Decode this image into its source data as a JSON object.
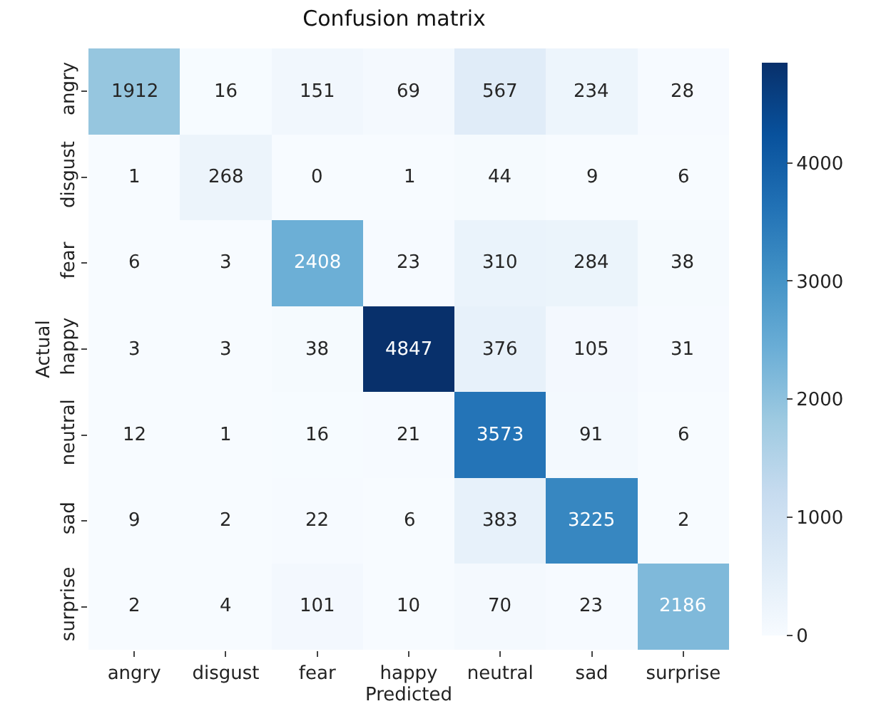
{
  "chart_data": {
    "type": "heatmap",
    "title": "Confusion matrix",
    "xlabel": "Predicted",
    "ylabel": "Actual",
    "categories": [
      "angry",
      "disgust",
      "fear",
      "happy",
      "neutral",
      "sad",
      "surprise"
    ],
    "y_categories": [
      "angry",
      "disgust",
      "fear",
      "happy",
      "neutral",
      "sad",
      "surprise"
    ],
    "cells": [
      [
        1912,
        16,
        151,
        69,
        567,
        234,
        28
      ],
      [
        1,
        268,
        0,
        1,
        44,
        9,
        6
      ],
      [
        6,
        3,
        2408,
        23,
        310,
        284,
        38
      ],
      [
        3,
        3,
        38,
        4847,
        376,
        105,
        31
      ],
      [
        12,
        1,
        16,
        21,
        3573,
        91,
        6
      ],
      [
        9,
        2,
        22,
        6,
        383,
        3225,
        2
      ],
      [
        2,
        4,
        101,
        10,
        70,
        23,
        2186
      ]
    ],
    "clim": [
      0,
      4847
    ],
    "cticks": [
      0,
      1000,
      2000,
      3000,
      4000
    ],
    "data_labels": true
  }
}
